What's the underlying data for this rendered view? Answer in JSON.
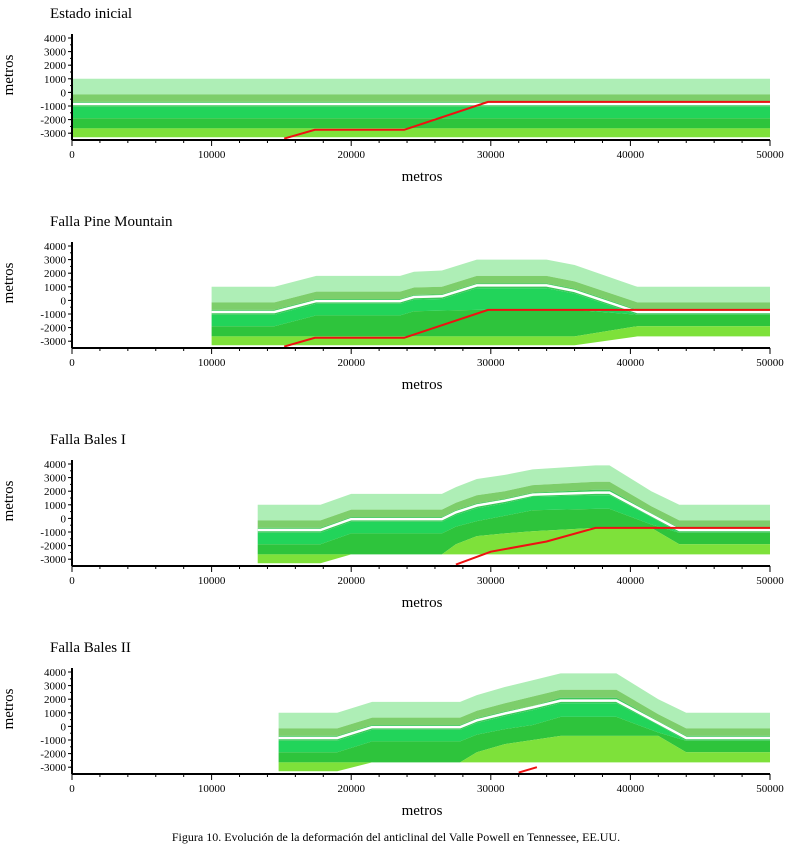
{
  "caption": "Figura 10. Evolución de la deformación del anticlinal del Valle Powell en Tennessee, EE.UU.",
  "colors": {
    "layer1": "#aeeeb6",
    "layer2": "#7dce6b",
    "layer3": "#3cc85a",
    "layer4": "#22d45a",
    "layer5": "#2ec43c",
    "layer6": "#7ee13a",
    "separator": "#ffffff",
    "fault": "#ee1111",
    "axis": "#000000"
  },
  "chart_data": [
    {
      "type": "area",
      "title": "Estado inicial",
      "xlabel": "metros",
      "ylabel": "metros",
      "xlim": [
        0,
        50000
      ],
      "ylim": [
        -3500,
        4000
      ],
      "xticks": [
        "0",
        "10000",
        "20000",
        "30000",
        "40000",
        "50000"
      ],
      "yticks": [
        "4000",
        "3000",
        "2000",
        "1000",
        "0",
        "-1000",
        "-2000",
        "-3000"
      ],
      "x": [
        0,
        10000,
        15000,
        17500,
        24000,
        30000,
        35000,
        40000,
        50000
      ],
      "surfaces": [
        [
          1000,
          1000,
          1000,
          1000,
          1000,
          1000,
          1000,
          1000,
          1000
        ],
        [
          -150,
          -150,
          -150,
          -150,
          -150,
          -150,
          -150,
          -150,
          -150
        ],
        [
          -700,
          -700,
          -700,
          -700,
          -700,
          -700,
          -700,
          -700,
          -700
        ],
        [
          -1050,
          -1050,
          -1050,
          -1050,
          -1050,
          -1050,
          -1050,
          -1050,
          -1050
        ],
        [
          -1900,
          -1900,
          -1900,
          -1900,
          -1900,
          -1900,
          -1900,
          -1900,
          -1900
        ],
        [
          -2650,
          -2650,
          -2650,
          -2650,
          -2650,
          -2650,
          -2650,
          -2650,
          -2650
        ],
        [
          -3300,
          -3300,
          -3300,
          -3300,
          -3300,
          -3300,
          -3300,
          -3300,
          -3300
        ]
      ],
      "separator": [
        -850,
        -850,
        -850,
        -850,
        -850,
        -850,
        -850,
        -850,
        -850
      ],
      "fault": [
        [
          15200,
          -3400
        ],
        [
          17400,
          -2750
        ],
        [
          23800,
          -2750
        ],
        [
          29800,
          -700
        ],
        [
          50000,
          -700
        ]
      ]
    },
    {
      "type": "area",
      "title": "Falla Pine Mountain",
      "xlabel": "metros",
      "ylabel": "metros",
      "xlim": [
        0,
        50000
      ],
      "ylim": [
        -3500,
        4000
      ],
      "xticks": [
        "0",
        "10000",
        "20000",
        "30000",
        "40000",
        "50000"
      ],
      "yticks": [
        "4000",
        "3000",
        "2000",
        "1000",
        "0",
        "-1000",
        "-2000",
        "-3000"
      ],
      "x": [
        10000,
        14500,
        17500,
        23500,
        24500,
        26500,
        29000,
        30500,
        34000,
        36000,
        40500,
        50000
      ],
      "surfaces": [
        [
          1000,
          1000,
          1800,
          1800,
          2100,
          2200,
          3000,
          3000,
          3000,
          2600,
          1000,
          1000
        ],
        [
          -150,
          -150,
          650,
          650,
          950,
          1000,
          1800,
          1800,
          1800,
          1400,
          -150,
          -150
        ],
        [
          -700,
          -700,
          100,
          100,
          400,
          450,
          1250,
          1250,
          1250,
          850,
          -700,
          -700
        ],
        [
          -1050,
          -1050,
          -250,
          -250,
          50,
          100,
          900,
          900,
          900,
          500,
          -1050,
          -1050
        ],
        [
          -1900,
          -1900,
          -1100,
          -1100,
          -800,
          -750,
          -700,
          -700,
          -700,
          -700,
          -1050,
          -1050
        ],
        [
          -2650,
          -2650,
          -2650,
          -2650,
          -2650,
          -2650,
          -2650,
          -2650,
          -2650,
          -2650,
          -1900,
          -1900
        ],
        [
          -3300,
          -3300,
          -3300,
          -3300,
          -3300,
          -3300,
          -3300,
          -3300,
          -3300,
          -3300,
          -2650,
          -2650
        ]
      ],
      "separator": [
        -850,
        -850,
        -50,
        -50,
        250,
        300,
        1100,
        1100,
        1100,
        700,
        -850,
        -850
      ],
      "fault": [
        [
          15200,
          -3400
        ],
        [
          17400,
          -2750
        ],
        [
          23800,
          -2750
        ],
        [
          29800,
          -700
        ],
        [
          50000,
          -700
        ]
      ]
    },
    {
      "type": "area",
      "title": "Falla Bales I",
      "xlabel": "metros",
      "ylabel": "metros",
      "xlim": [
        0,
        50000
      ],
      "ylim": [
        -3500,
        4000
      ],
      "xticks": [
        "0",
        "10000",
        "20000",
        "30000",
        "40000",
        "50000"
      ],
      "yticks": [
        "4000",
        "3000",
        "2000",
        "1000",
        "0",
        "-1000",
        "-2000",
        "-3000"
      ],
      "x": [
        13300,
        17800,
        20000,
        26500,
        27500,
        29000,
        31000,
        33000,
        37500,
        38500,
        41500,
        43500,
        50000
      ],
      "surfaces": [
        [
          1000,
          1000,
          1800,
          1800,
          2300,
          2900,
          3200,
          3600,
          3900,
          3900,
          2000,
          1000,
          1000
        ],
        [
          -150,
          -150,
          650,
          650,
          1150,
          1700,
          2000,
          2450,
          2700,
          2700,
          900,
          -150,
          -150
        ],
        [
          -700,
          -700,
          100,
          100,
          600,
          1100,
          1450,
          1900,
          2100,
          2100,
          400,
          -700,
          -700
        ],
        [
          -1050,
          -1050,
          -250,
          -250,
          250,
          750,
          1100,
          1600,
          1700,
          1700,
          100,
          -1050,
          -1050
        ],
        [
          -1900,
          -1900,
          -1100,
          -1100,
          -600,
          -200,
          200,
          600,
          700,
          700,
          -450,
          -1050,
          -1050
        ],
        [
          -2650,
          -2650,
          -2650,
          -2650,
          -1900,
          -1300,
          -1100,
          -950,
          -700,
          -700,
          -700,
          -1900,
          -1900
        ],
        [
          -3300,
          -3300,
          -2650,
          -2650,
          -2650,
          -2650,
          -2650,
          -2650,
          -2650,
          -2650,
          -2650,
          -2650,
          -2650
        ]
      ],
      "separator": [
        -850,
        -850,
        -50,
        -50,
        450,
        950,
        1300,
        1750,
        1900,
        1900,
        250,
        -850,
        -850
      ],
      "fault": [
        [
          27500,
          -3400
        ],
        [
          30000,
          -2450
        ],
        [
          34000,
          -1700
        ],
        [
          37500,
          -700
        ],
        [
          50000,
          -700
        ]
      ]
    },
    {
      "type": "area",
      "title": "Falla Bales II",
      "xlabel": "metros",
      "ylabel": "metros",
      "xlim": [
        0,
        50000
      ],
      "ylim": [
        -3500,
        4000
      ],
      "xticks": [
        "0",
        "10000",
        "20000",
        "30000",
        "40000",
        "50000"
      ],
      "yticks": [
        "4000",
        "3000",
        "2000",
        "1000",
        "0",
        "-1000",
        "-2000",
        "-3000"
      ],
      "x": [
        14800,
        19000,
        21500,
        27800,
        29000,
        31000,
        33000,
        35000,
        38000,
        39000,
        42000,
        44000,
        50000
      ],
      "surfaces": [
        [
          1000,
          1000,
          1800,
          1800,
          2300,
          2900,
          3400,
          3900,
          3900,
          3900,
          2000,
          1000,
          1000
        ],
        [
          -150,
          -150,
          650,
          650,
          1150,
          1700,
          2200,
          2700,
          2700,
          2700,
          900,
          -150,
          -150
        ],
        [
          -700,
          -700,
          100,
          100,
          600,
          1100,
          1500,
          2100,
          2100,
          2100,
          400,
          -700,
          -700
        ],
        [
          -1050,
          -1050,
          -250,
          -250,
          250,
          750,
          1200,
          1700,
          1700,
          1700,
          100,
          -1050,
          -1050
        ],
        [
          -1900,
          -1900,
          -1100,
          -1100,
          -600,
          -200,
          100,
          700,
          700,
          700,
          -450,
          -1050,
          -1050
        ],
        [
          -2650,
          -2650,
          -2650,
          -2650,
          -1900,
          -1300,
          -1000,
          -700,
          -700,
          -700,
          -700,
          -1900,
          -1900
        ],
        [
          -3300,
          -3300,
          -2650,
          -2650,
          -2650,
          -2650,
          -2650,
          -2650,
          -2650,
          -2650,
          -2650,
          -2650,
          -2650
        ]
      ],
      "separator": [
        -850,
        -850,
        -50,
        -50,
        450,
        950,
        1400,
        1900,
        1900,
        1900,
        250,
        -850,
        -850
      ],
      "fault": [
        [
          32000,
          -3400
        ],
        [
          33300,
          -3000
        ]
      ]
    }
  ]
}
